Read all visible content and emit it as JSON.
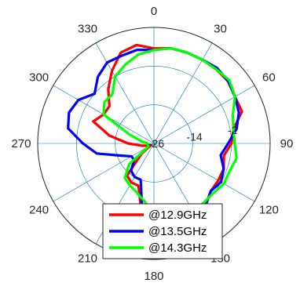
{
  "chart_data": {
    "type": "polar-line",
    "angle_ticks": [
      "0",
      "30",
      "60",
      "90",
      "120",
      "150",
      "180",
      "210",
      "240",
      "270",
      "300",
      "330"
    ],
    "angle_direction": "clockwise",
    "zero_location": "top",
    "r_ticks": [
      "-26",
      "-14",
      "-2"
    ],
    "r_tick_values": [
      -26,
      -14,
      -2
    ],
    "rlim": [
      -26,
      10
    ],
    "grid": true,
    "legend": {
      "placement": "bottom"
    },
    "theta_step_deg": 10,
    "series": [
      {
        "name": "@12.9GHz",
        "color": "#ff0000",
        "values": [
          3.5,
          4,
          4,
          4,
          4,
          4,
          3,
          3,
          -1,
          -2,
          -4,
          -3,
          -3,
          -3,
          -1,
          1,
          3,
          2,
          4,
          -4,
          -12,
          -12,
          -13,
          -21,
          -25,
          -24,
          -22,
          -18,
          -12,
          -6,
          -8,
          -8,
          -4,
          0,
          4,
          5
        ]
      },
      {
        "name": "@13.5GHz",
        "color": "#0000ff",
        "values": [
          3,
          4,
          4,
          4,
          4.5,
          4,
          3,
          2,
          0,
          -3,
          -5,
          -3,
          -2,
          -3,
          -1,
          0,
          0,
          0,
          0,
          -5,
          -14,
          -14,
          -15,
          -18,
          -18,
          -15,
          -8,
          -4,
          1,
          2,
          1,
          -2,
          1,
          3,
          3,
          3.5
        ]
      },
      {
        "name": "@14.3GHz",
        "color": "#00ff00",
        "values": [
          3,
          4,
          4,
          4,
          4,
          4.5,
          3,
          0,
          -1,
          -1,
          0,
          -1,
          -1,
          -2,
          -2,
          -2,
          -2,
          -2,
          -4,
          -8,
          -10,
          -11,
          -12,
          -16,
          -24,
          -24,
          -24,
          -24,
          -22,
          -18,
          -8,
          -6,
          -6,
          -2,
          0,
          2
        ]
      }
    ]
  }
}
